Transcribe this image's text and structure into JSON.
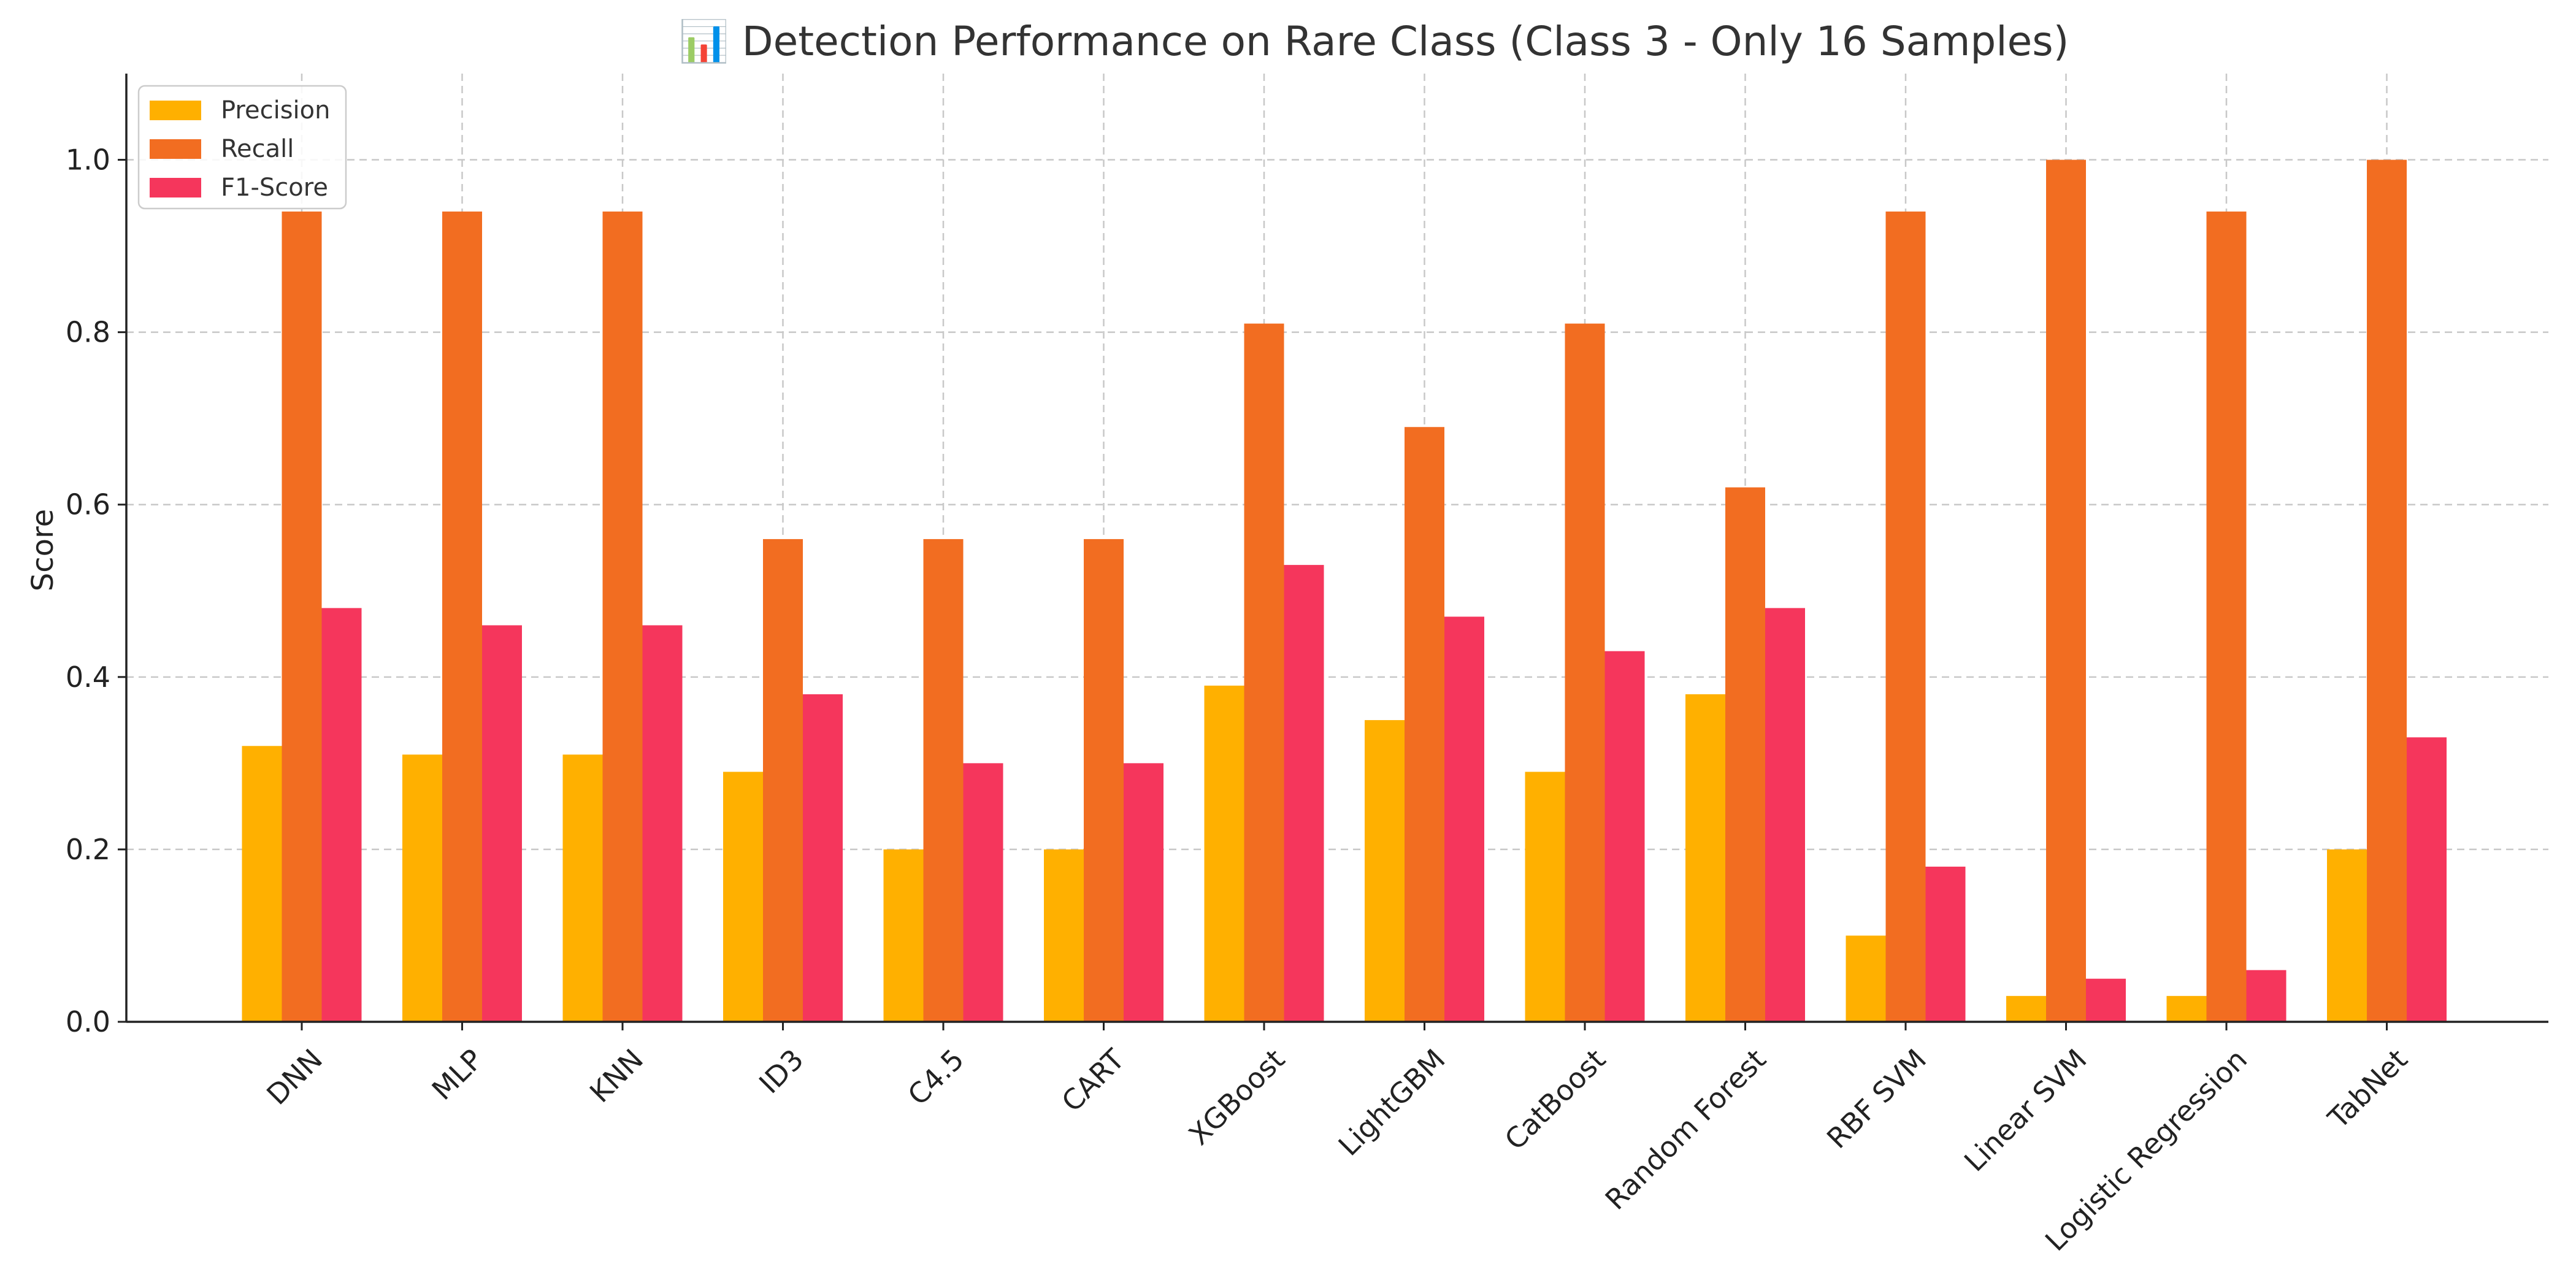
{
  "chart_data": {
    "type": "bar",
    "title": "📊 Detection Performance on Rare Class (Class 3 - Only 16 Samples)",
    "xlabel": "",
    "ylabel": "Score",
    "ylim": [
      0,
      1.1
    ],
    "yticks": [
      "0.0",
      "0.2",
      "0.4",
      "0.6",
      "0.8",
      "1.0"
    ],
    "grid": true,
    "legend_position": "top-left",
    "categories": [
      "DNN",
      "MLP",
      "KNN",
      "ID3",
      "C4.5",
      "CART",
      "XGBoost",
      "LightGBM",
      "CatBoost",
      "Random Forest",
      "RBF SVM",
      "Linear SVM",
      "Logistic Regression",
      "TabNet"
    ],
    "series": [
      {
        "name": "Precision",
        "color": "#FFB000",
        "values": [
          0.32,
          0.31,
          0.31,
          0.29,
          0.2,
          0.2,
          0.39,
          0.35,
          0.29,
          0.38,
          0.1,
          0.03,
          0.03,
          0.2
        ]
      },
      {
        "name": "Recall",
        "color": "#F26D21",
        "values": [
          0.94,
          0.94,
          0.94,
          0.56,
          0.56,
          0.56,
          0.81,
          0.69,
          0.81,
          0.62,
          0.94,
          1.0,
          0.94,
          1.0
        ]
      },
      {
        "name": "F1-Score",
        "color": "#F5365C",
        "values": [
          0.48,
          0.46,
          0.46,
          0.38,
          0.3,
          0.3,
          0.53,
          0.47,
          0.43,
          0.48,
          0.18,
          0.05,
          0.06,
          0.33
        ]
      }
    ]
  }
}
